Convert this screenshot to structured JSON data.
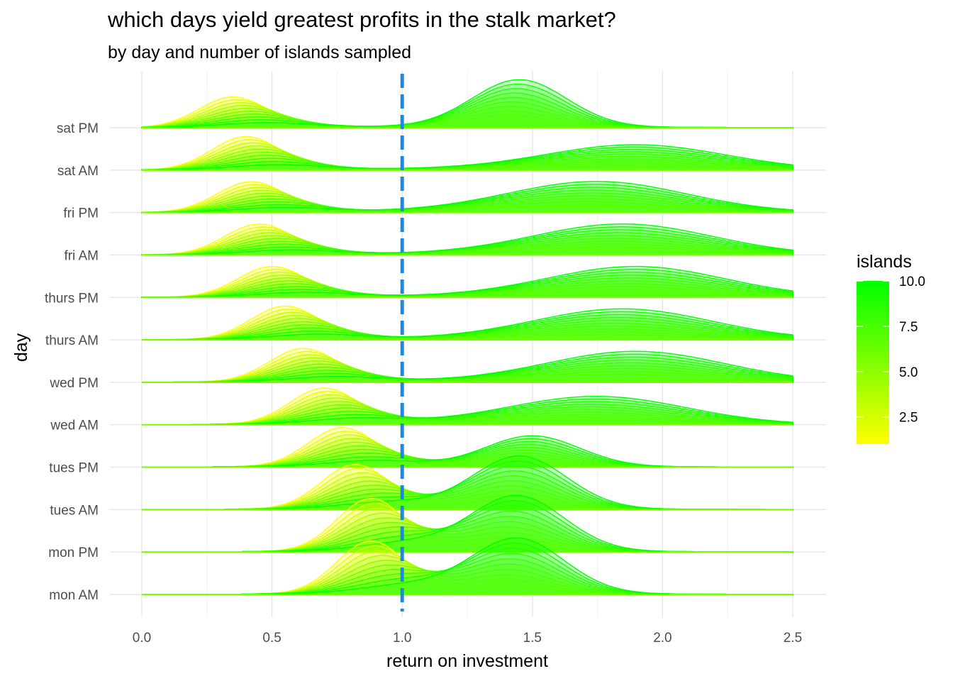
{
  "chart_data": {
    "type": "ridgeline",
    "title": "which days yield greatest profits in the stalk market?",
    "subtitle": "by day and number of islands sampled",
    "xlabel": "return on investment",
    "ylabel": "day",
    "xlim": [
      0,
      2.5
    ],
    "x_ticks": [
      "0.0",
      "0.5",
      "1.0",
      "1.5",
      "2.0",
      "2.5"
    ],
    "x_tick_values": [
      0,
      0.5,
      1.0,
      1.5,
      2.0,
      2.5
    ],
    "reference_line": {
      "x": 1.0,
      "style": "dashed",
      "color": "#1e88e5"
    },
    "categories": [
      "mon AM",
      "mon PM",
      "tues AM",
      "tues PM",
      "wed AM",
      "wed PM",
      "thurs AM",
      "thurs PM",
      "fri AM",
      "fri PM",
      "sat AM",
      "sat PM"
    ],
    "islands": [
      1,
      2,
      3,
      4,
      5,
      6,
      7,
      8,
      9,
      10
    ],
    "density_peaks": [
      {
        "day": "mon AM",
        "low": {
          "x": 0.88,
          "h": 0.95
        },
        "high": {
          "x": 1.44,
          "h": 1.0
        }
      },
      {
        "day": "mon PM",
        "low": {
          "x": 0.88,
          "h": 0.95
        },
        "high": {
          "x": 1.44,
          "h": 1.0
        }
      },
      {
        "day": "tues AM",
        "low": {
          "x": 0.82,
          "h": 0.8
        },
        "high": {
          "x": 1.45,
          "h": 0.95
        }
      },
      {
        "day": "tues PM",
        "low": {
          "x": 0.77,
          "h": 0.7
        },
        "high": {
          "x": 1.5,
          "h": 0.55
        }
      },
      {
        "day": "wed AM",
        "low": {
          "x": 0.7,
          "h": 0.65
        },
        "high": {
          "x": 1.75,
          "h": 0.5
        }
      },
      {
        "day": "wed PM",
        "low": {
          "x": 0.62,
          "h": 0.6
        },
        "high": {
          "x": 1.9,
          "h": 0.55
        }
      },
      {
        "day": "thurs AM",
        "low": {
          "x": 0.55,
          "h": 0.6
        },
        "high": {
          "x": 1.85,
          "h": 0.55
        }
      },
      {
        "day": "thurs PM",
        "low": {
          "x": 0.5,
          "h": 0.55
        },
        "high": {
          "x": 1.9,
          "h": 0.55
        }
      },
      {
        "day": "fri AM",
        "low": {
          "x": 0.45,
          "h": 0.55
        },
        "high": {
          "x": 1.85,
          "h": 0.55
        }
      },
      {
        "day": "fri PM",
        "low": {
          "x": 0.42,
          "h": 0.55
        },
        "high": {
          "x": 1.75,
          "h": 0.55
        }
      },
      {
        "day": "sat AM",
        "low": {
          "x": 0.4,
          "h": 0.6
        },
        "high": {
          "x": 1.9,
          "h": 0.45
        }
      },
      {
        "day": "sat PM",
        "low": {
          "x": 0.35,
          "h": 0.55
        },
        "high": {
          "x": 1.45,
          "h": 0.85
        }
      }
    ],
    "legend": {
      "title": "islands",
      "placement": "right",
      "ticks": [
        "2.5",
        "5.0",
        "7.5",
        "10.0"
      ],
      "tick_values": [
        2.5,
        5.0,
        7.5,
        10.0
      ],
      "range": [
        1,
        10
      ],
      "color_low": "#ffff00",
      "color_high": "#00ff00"
    }
  }
}
